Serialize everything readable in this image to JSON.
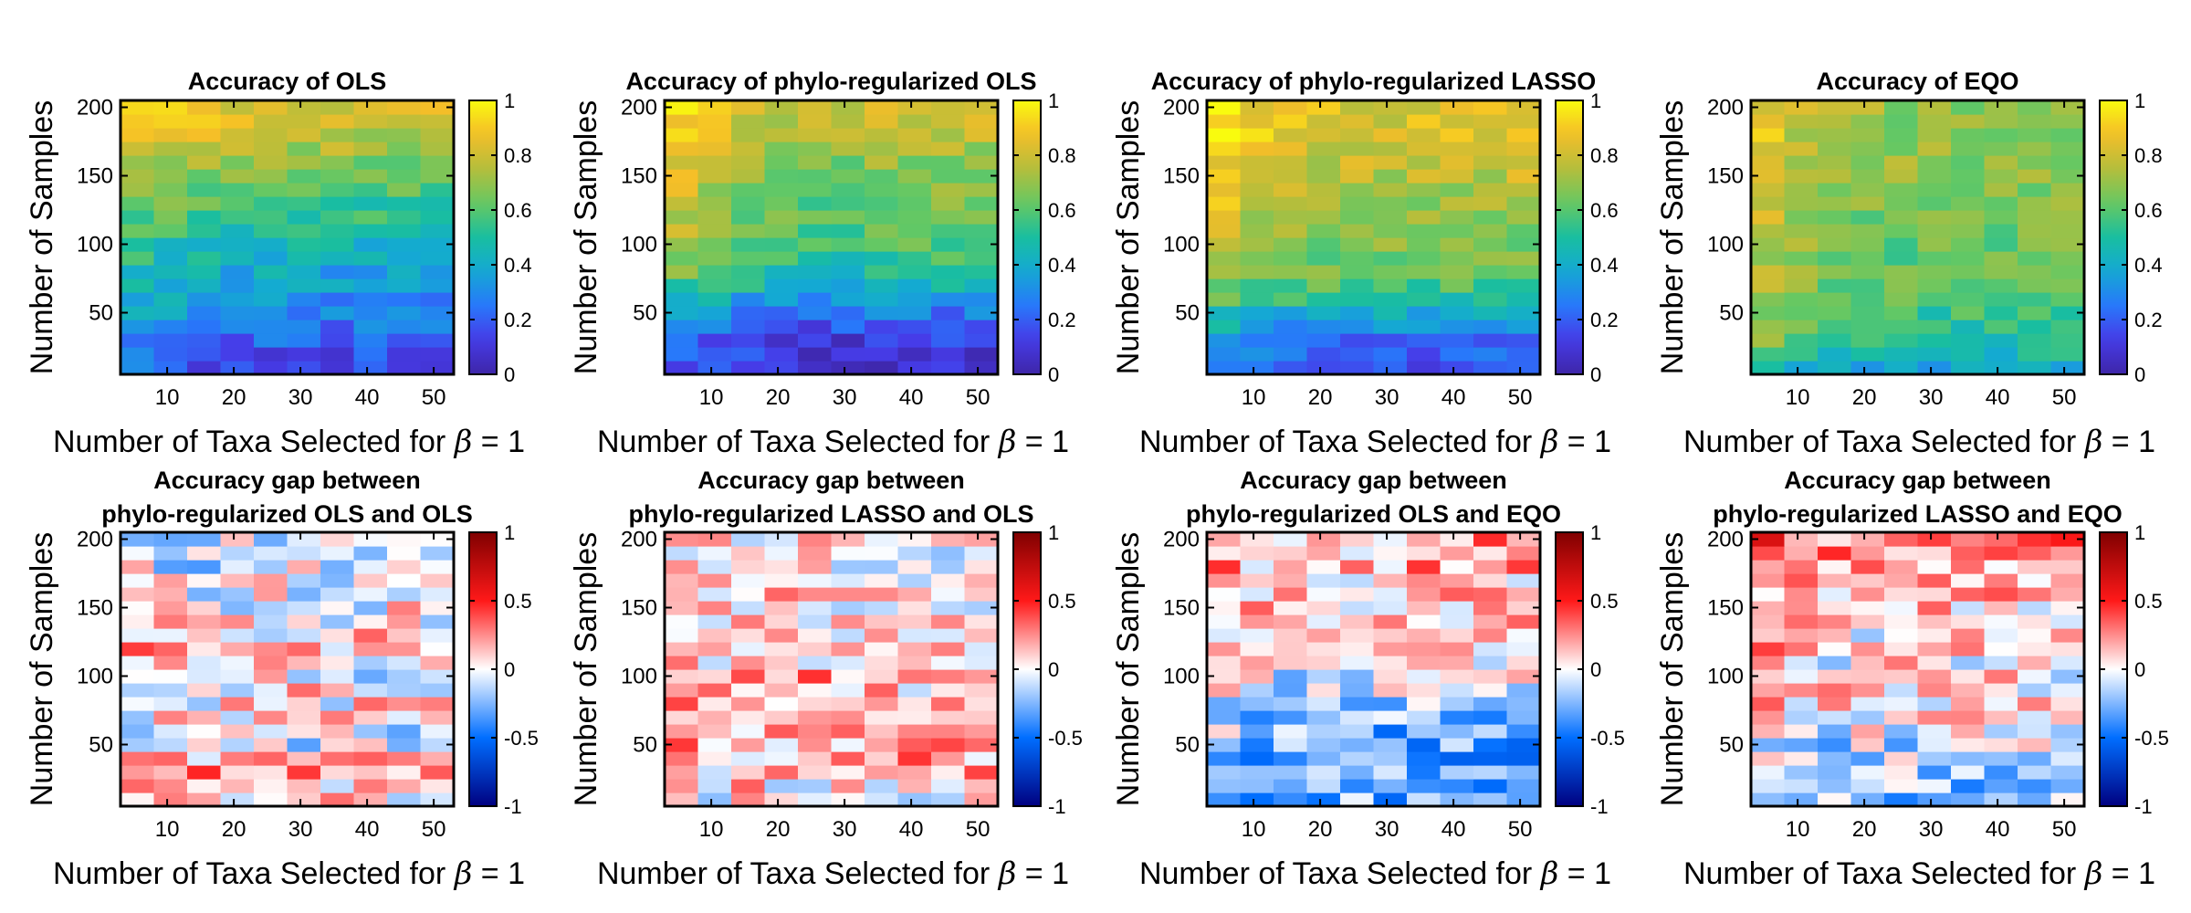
{
  "chart_data": [
    {
      "type": "heatmap",
      "cmap": "parula",
      "title": [
        "Accuracy of OLS"
      ],
      "xlabel": "Number of Taxa Selected for",
      "xlabel_symbol": "β",
      "xlabel_tail": " = 1",
      "ylabel": "Number of Samples",
      "xticks": [
        "10",
        "20",
        "30",
        "40",
        "50"
      ],
      "yticks": [
        "50",
        "100",
        "150",
        "200"
      ],
      "xlim": [
        3,
        53
      ],
      "ylim": [
        5,
        205
      ],
      "clim": [
        0,
        1
      ],
      "colorbar_ticks": [
        "0",
        "0.2",
        "0.4",
        "0.6",
        "0.8",
        "1"
      ],
      "grid_shape": [
        20,
        10
      ],
      "row_order": "bottom-to-top",
      "base_rows": [
        0.17,
        0.2,
        0.24,
        0.28,
        0.32,
        0.35,
        0.38,
        0.41,
        0.44,
        0.48,
        0.52,
        0.56,
        0.59,
        0.63,
        0.67,
        0.71,
        0.76,
        0.81,
        0.85,
        0.88
      ],
      "col_shift": [
        0.06,
        0.02,
        -0.01,
        -0.02,
        -0.03,
        -0.03,
        -0.04,
        -0.04,
        -0.05,
        -0.05
      ]
    },
    {
      "type": "heatmap",
      "cmap": "parula",
      "title": [
        "Accuracy of phylo-regularized OLS"
      ],
      "xlabel": "Number of Taxa Selected for",
      "xlabel_symbol": "β",
      "xlabel_tail": " = 1",
      "ylabel": "Number of Samples",
      "xticks": [
        "10",
        "20",
        "30",
        "40",
        "50"
      ],
      "yticks": [
        "50",
        "100",
        "150",
        "200"
      ],
      "xlim": [
        3,
        53
      ],
      "ylim": [
        5,
        205
      ],
      "clim": [
        0,
        1
      ],
      "colorbar_ticks": [
        "0",
        "0.2",
        "0.4",
        "0.6",
        "0.8",
        "1"
      ],
      "grid_shape": [
        20,
        10
      ],
      "row_order": "bottom-to-top",
      "base_rows": [
        0.1,
        0.14,
        0.18,
        0.23,
        0.29,
        0.37,
        0.47,
        0.54,
        0.58,
        0.61,
        0.63,
        0.65,
        0.67,
        0.69,
        0.71,
        0.73,
        0.76,
        0.78,
        0.8,
        0.82
      ],
      "col_shift": [
        0.1,
        0.03,
        0.0,
        -0.03,
        -0.06,
        -0.06,
        -0.04,
        -0.03,
        -0.03,
        -0.03
      ]
    },
    {
      "type": "heatmap",
      "cmap": "parula",
      "title": [
        "Accuracy of phylo-regularized LASSO"
      ],
      "xlabel": "Number of Taxa Selected for",
      "xlabel_symbol": "β",
      "xlabel_tail": " = 1",
      "ylabel": "Number of Samples",
      "xticks": [
        "10",
        "20",
        "30",
        "40",
        "50"
      ],
      "yticks": [
        "50",
        "100",
        "150",
        "200"
      ],
      "xlim": [
        3,
        53
      ],
      "ylim": [
        5,
        205
      ],
      "clim": [
        0,
        1
      ],
      "colorbar_ticks": [
        "0",
        "0.2",
        "0.4",
        "0.6",
        "0.8",
        "1"
      ],
      "grid_shape": [
        20,
        10
      ],
      "row_order": "bottom-to-top",
      "base_rows": [
        0.17,
        0.22,
        0.27,
        0.34,
        0.43,
        0.53,
        0.6,
        0.64,
        0.67,
        0.69,
        0.71,
        0.73,
        0.75,
        0.77,
        0.79,
        0.81,
        0.83,
        0.85,
        0.87,
        0.88
      ],
      "col_shift": [
        0.08,
        0.02,
        0.0,
        -0.02,
        -0.04,
        -0.04,
        -0.03,
        -0.03,
        -0.02,
        -0.02
      ]
    },
    {
      "type": "heatmap",
      "cmap": "parula",
      "title": [
        "Accuracy of EQO"
      ],
      "xlabel": "Number of Taxa Selected for",
      "xlabel_symbol": "β",
      "xlabel_tail": " = 1",
      "ylabel": "Number of Samples",
      "xticks": [
        "10",
        "20",
        "30",
        "40",
        "50"
      ],
      "yticks": [
        "50",
        "100",
        "150",
        "200"
      ],
      "xlim": [
        3,
        53
      ],
      "ylim": [
        5,
        205
      ],
      "clim": [
        0,
        1
      ],
      "colorbar_ticks": [
        "0",
        "0.2",
        "0.4",
        "0.6",
        "0.8",
        "1"
      ],
      "grid_shape": [
        20,
        10
      ],
      "row_order": "bottom-to-top",
      "base_rows": [
        0.4,
        0.48,
        0.53,
        0.56,
        0.58,
        0.6,
        0.62,
        0.63,
        0.64,
        0.65,
        0.66,
        0.67,
        0.68,
        0.69,
        0.7,
        0.71,
        0.71,
        0.72,
        0.72,
        0.73
      ],
      "col_shift": [
        0.12,
        0.04,
        0.0,
        -0.02,
        -0.02,
        -0.03,
        -0.03,
        -0.03,
        -0.02,
        -0.02
      ]
    },
    {
      "type": "heatmap",
      "cmap": "diverging-red-blue",
      "title": [
        "Accuracy gap between",
        "phylo-regularized OLS and OLS"
      ],
      "xlabel": "Number of Taxa Selected for",
      "xlabel_symbol": "β",
      "xlabel_tail": " = 1",
      "ylabel": "Number of Samples",
      "xticks": [
        "10",
        "20",
        "30",
        "40",
        "50"
      ],
      "yticks": [
        "50",
        "100",
        "150",
        "200"
      ],
      "xlim": [
        3,
        53
      ],
      "ylim": [
        5,
        205
      ],
      "clim": [
        -1,
        1
      ],
      "colorbar_ticks": [
        "-1",
        "-0.5",
        "0",
        "0.5",
        "1"
      ],
      "grid_shape": [
        20,
        10
      ],
      "row_order": "bottom-to-top",
      "base_rows": [
        0.05,
        0.15,
        0.2,
        0.08,
        -0.05,
        -0.08,
        0.02,
        0.05,
        0.08,
        -0.05,
        0.1,
        0.15,
        0.08,
        0.05,
        0.02,
        0.0,
        -0.03,
        -0.08,
        -0.08,
        -0.05
      ],
      "col_shift": [
        0.0,
        0.0,
        0.0,
        0.0,
        0.0,
        0.0,
        0.0,
        0.0,
        0.0,
        0.0
      ]
    },
    {
      "type": "heatmap",
      "cmap": "diverging-red-blue",
      "title": [
        "Accuracy gap between",
        "phylo-regularized LASSO and OLS"
      ],
      "xlabel": "Number of Taxa Selected for",
      "xlabel_symbol": "β",
      "xlabel_tail": " = 1",
      "ylabel": "Number of Samples",
      "xticks": [
        "10",
        "20",
        "30",
        "40",
        "50"
      ],
      "yticks": [
        "50",
        "100",
        "150",
        "200"
      ],
      "xlim": [
        3,
        53
      ],
      "ylim": [
        5,
        205
      ],
      "clim": [
        -1,
        1
      ],
      "colorbar_ticks": [
        "-1",
        "-0.5",
        "0",
        "0.5",
        "1"
      ],
      "grid_shape": [
        20,
        10
      ],
      "row_order": "bottom-to-top",
      "base_rows": [
        0.05,
        0.08,
        0.15,
        0.18,
        0.15,
        0.1,
        0.2,
        0.25,
        0.15,
        0.18,
        0.15,
        0.12,
        0.1,
        0.12,
        0.1,
        0.08,
        0.05,
        0.05,
        0.05,
        0.03
      ],
      "col_shift": [
        0.02,
        0.0,
        0.0,
        0.0,
        0.0,
        0.0,
        0.0,
        0.0,
        0.0,
        0.0
      ]
    },
    {
      "type": "heatmap",
      "cmap": "diverging-red-blue",
      "title": [
        "Accuracy gap between",
        "phylo-regularized OLS and EQO"
      ],
      "xlabel": "Number of Taxa Selected for",
      "xlabel_symbol": "β",
      "xlabel_tail": " = 1",
      "ylabel": "Number of Samples",
      "xticks": [
        "10",
        "20",
        "30",
        "40",
        "50"
      ],
      "yticks": [
        "50",
        "100",
        "150",
        "200"
      ],
      "xlim": [
        3,
        53
      ],
      "ylim": [
        5,
        205
      ],
      "clim": [
        -1,
        1
      ],
      "colorbar_ticks": [
        "-1",
        "-0.5",
        "0",
        "0.5",
        "1"
      ],
      "grid_shape": [
        20,
        10
      ],
      "row_order": "bottom-to-top",
      "base_rows": [
        -0.3,
        -0.32,
        -0.32,
        -0.3,
        -0.28,
        -0.25,
        -0.2,
        -0.15,
        -0.1,
        -0.05,
        0.0,
        0.05,
        0.08,
        0.1,
        0.12,
        0.14,
        0.15,
        0.17,
        0.18,
        0.2
      ],
      "col_shift": [
        0.1,
        0.02,
        0.0,
        0.0,
        0.0,
        0.0,
        0.0,
        0.0,
        0.0,
        0.0
      ]
    },
    {
      "type": "heatmap",
      "cmap": "diverging-red-blue",
      "title": [
        "Accuracy gap between",
        "phylo-regularized LASSO and EQO"
      ],
      "xlabel": "Number of Taxa Selected for",
      "xlabel_symbol": "β",
      "xlabel_tail": " = 1",
      "ylabel": "Number of Samples",
      "xticks": [
        "10",
        "20",
        "30",
        "40",
        "50"
      ],
      "yticks": [
        "50",
        "100",
        "150",
        "200"
      ],
      "xlim": [
        3,
        53
      ],
      "ylim": [
        5,
        205
      ],
      "clim": [
        -1,
        1
      ],
      "colorbar_ticks": [
        "-1",
        "-0.5",
        "0",
        "0.5",
        "1"
      ],
      "grid_shape": [
        20,
        10
      ],
      "row_order": "bottom-to-top",
      "base_rows": [
        -0.25,
        -0.22,
        -0.2,
        -0.18,
        -0.12,
        -0.05,
        0.02,
        0.05,
        0.05,
        0.04,
        0.03,
        0.03,
        0.05,
        0.07,
        0.1,
        0.15,
        0.2,
        0.25,
        0.3,
        0.32
      ],
      "col_shift": [
        0.12,
        0.03,
        0.0,
        0.0,
        0.0,
        0.0,
        0.0,
        0.0,
        0.0,
        0.0
      ]
    }
  ]
}
